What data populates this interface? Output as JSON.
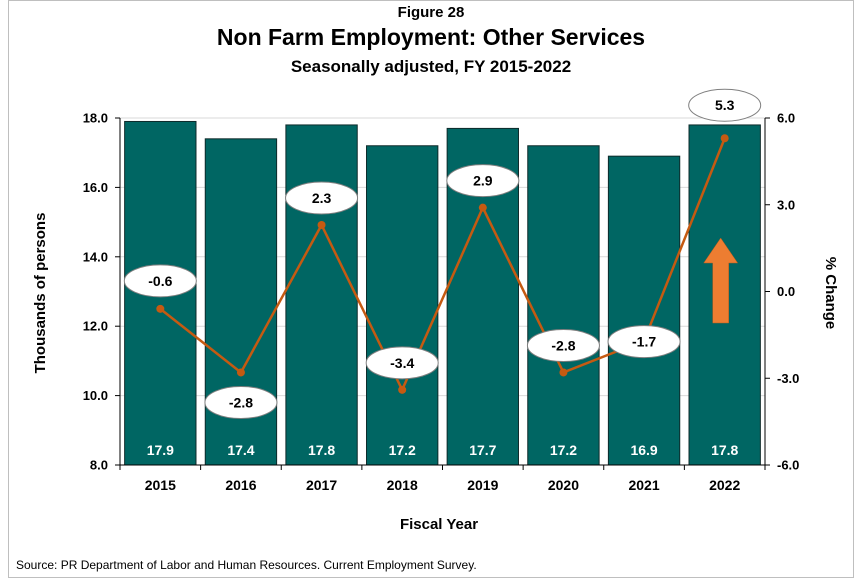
{
  "figure_label": "Figure 28",
  "title": "Non Farm Employment: Other Services",
  "subtitle": "Seasonally adjusted, FY 2015-2022",
  "source": "Source: PR Department of Labor and Human Resources. Current Employment Survey.",
  "colors": {
    "bar": "#006663",
    "bar_border": "#0d2a2a",
    "line": "#c55a11",
    "arrow": "#ed7d31",
    "bar_label": "#ffffff"
  },
  "chart_data": {
    "type": "bar",
    "title": "Non Farm Employment: Other Services",
    "subtitle": "Seasonally adjusted, FY 2015-2022",
    "xlabel": "Fiscal Year",
    "ylabel": "Thousands of persons",
    "y2label": "% Change",
    "categories": [
      "2015",
      "2016",
      "2017",
      "2018",
      "2019",
      "2020",
      "2021",
      "2022"
    ],
    "ylim": [
      8.0,
      18.0
    ],
    "y_ticks": [
      "8.0",
      "10.0",
      "12.0",
      "14.0",
      "16.0",
      "18.0"
    ],
    "y2lim": [
      -6.0,
      6.0
    ],
    "y2_ticks": [
      "-6.0",
      "-3.0",
      "0.0",
      "3.0",
      "6.0"
    ],
    "grid": true,
    "series": [
      {
        "type": "bar",
        "axis": "left",
        "values": [
          17.9,
          17.4,
          17.8,
          17.2,
          17.7,
          17.2,
          16.9,
          17.8
        ],
        "labels": [
          "17.9",
          "17.4",
          "17.8",
          "17.2",
          "17.7",
          "17.2",
          "16.9",
          "17.8"
        ]
      },
      {
        "type": "line",
        "axis": "right",
        "values": [
          -0.6,
          -2.8,
          2.3,
          -3.4,
          2.9,
          -2.8,
          -1.7,
          5.3
        ],
        "labels": [
          "-0.6",
          "-2.8",
          "2.3",
          "-3.4",
          "2.9",
          "-2.8",
          "-1.7",
          "5.3"
        ]
      }
    ],
    "annotation": {
      "type": "up-arrow",
      "category": "2022"
    }
  }
}
